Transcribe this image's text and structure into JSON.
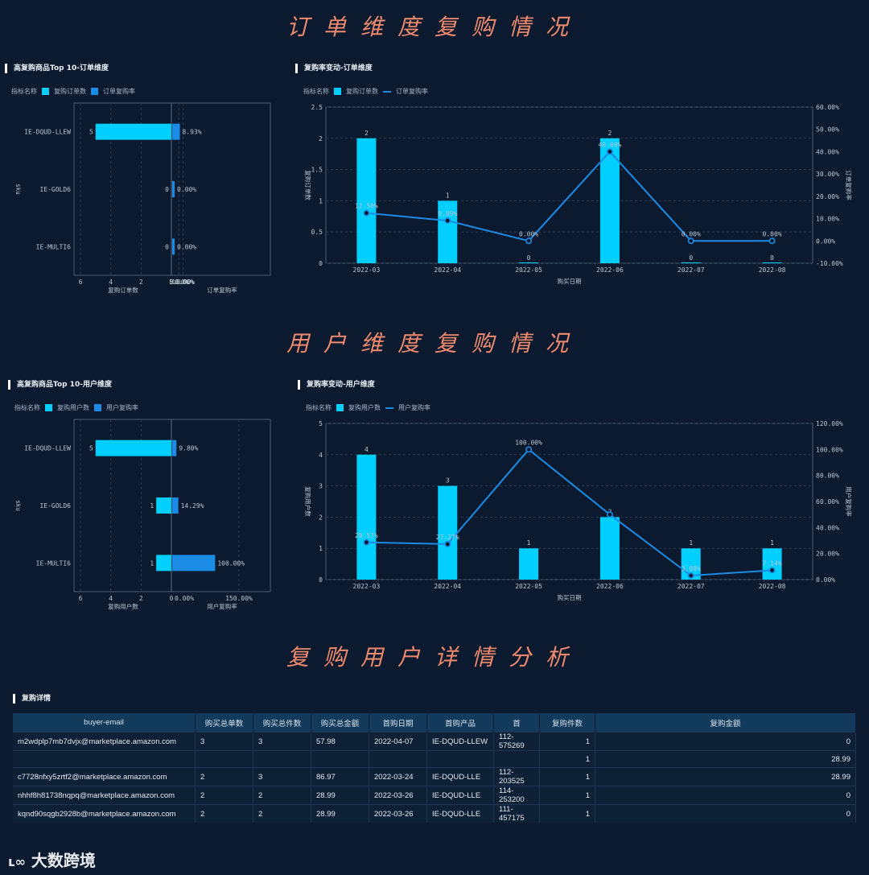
{
  "sections": {
    "order": "订单维度复购情况",
    "user": "用户维度复购情况",
    "detail": "复购用户详情分析"
  },
  "panels": {
    "top10_order": {
      "title": "高复购商品Top 10-订单维度",
      "legend_prefix": "指标名称",
      "legend": [
        "复购订单数",
        "订单复购率"
      ],
      "ylabel": "sku",
      "left_xlabel": "复购订单数",
      "right_xlabel": "订单复购率"
    },
    "trend_order": {
      "title": "复购率变动-订单维度",
      "legend_prefix": "指标名称",
      "legend": [
        "复购订单数",
        "订单复购率"
      ]
    },
    "top10_user": {
      "title": "高复购商品Top 10-用户维度",
      "legend_prefix": "指标名称",
      "legend": [
        "复购用户数",
        "用户复购率"
      ],
      "ylabel": "sku",
      "left_xlabel": "复购用户数",
      "right_xlabel": "用户复购率"
    },
    "trend_user": {
      "title": "复购率变动-用户维度",
      "legend_prefix": "指标名称",
      "legend": [
        "复购用户数",
        "用户复购率"
      ]
    },
    "detail": {
      "title": "复购详情"
    }
  },
  "chart_data": [
    {
      "id": "top10_order",
      "type": "bar",
      "orientation": "horizontal-butterfly",
      "categories": [
        "IE-DQUD-LLEW",
        "IE-GOLD6",
        "IE-MULTI6"
      ],
      "series": [
        {
          "name": "复购订单数",
          "values": [
            5,
            0,
            0
          ]
        },
        {
          "name": "订单复购率",
          "values": [
            8.93,
            0.0,
            0.0
          ],
          "labels": [
            "8.93%",
            "0.00%",
            "0.00%"
          ]
        }
      ],
      "left_axis": {
        "ticks": [
          "6",
          "4",
          "2",
          "0"
        ],
        "range": [
          0,
          6
        ]
      },
      "right_axis": {
        "ticks": [
          "0.00%",
          "5.00%",
          "10.00%"
        ],
        "range": [
          0,
          10
        ]
      },
      "ylabel": "sku",
      "xlabel_left": "复购订单数",
      "xlabel_right": "订单复购率",
      "colors": {
        "bar": "#00cfff",
        "rate": "#1c8be6"
      }
    },
    {
      "id": "trend_order",
      "type": "bar+line",
      "categories": [
        "2022-03",
        "2022-04",
        "2022-05",
        "2022-06",
        "2022-07",
        "2022-08"
      ],
      "series": [
        {
          "name": "复购订单数",
          "type": "bar",
          "values": [
            2,
            1,
            0,
            2,
            0,
            0
          ]
        },
        {
          "name": "订单复购率",
          "type": "line",
          "values": [
            12.5,
            9.09,
            0,
            40,
            0,
            0
          ],
          "labels": [
            "12.50%",
            "9.09%",
            "0.00%",
            "40.00%",
            "0.00%",
            "0.00%"
          ]
        }
      ],
      "xlabel": "购买日期",
      "ylabel": "复购订单数",
      "y2label": "订单复购率",
      "ylim": [
        0,
        2.5
      ],
      "yticks": [
        "0",
        "0.5",
        "1",
        "1.5",
        "2",
        "2.5"
      ],
      "y2lim": [
        -10,
        60
      ],
      "y2ticks": [
        "-10.00%",
        "0.00%",
        "10.00%",
        "20.00%",
        "30.00%",
        "40.00%",
        "50.00%",
        "60.00%"
      ],
      "colors": {
        "bar": "#00cfff",
        "line": "#1c8be6"
      }
    },
    {
      "id": "top10_user",
      "type": "bar",
      "orientation": "horizontal-butterfly",
      "categories": [
        "IE-DQUD-LLEW",
        "IE-GOLD6",
        "IE-MULTI6"
      ],
      "series": [
        {
          "name": "复购用户数",
          "values": [
            5,
            1,
            1
          ]
        },
        {
          "name": "用户复购率",
          "values": [
            9.8,
            14.29,
            100.0
          ],
          "labels": [
            "9.80%",
            "14.29%",
            "100.00%"
          ]
        }
      ],
      "left_axis": {
        "ticks": [
          "6",
          "4",
          "2",
          "0"
        ],
        "range": [
          0,
          6
        ]
      },
      "right_axis": {
        "ticks": [
          "0.00%",
          "150.00%"
        ],
        "range": [
          0,
          150
        ]
      },
      "ylabel": "sku",
      "xlabel_left": "复购用户数",
      "xlabel_right": "用户复购率",
      "colors": {
        "bar": "#00cfff",
        "rate": "#1c8be6"
      }
    },
    {
      "id": "trend_user",
      "type": "bar+line",
      "categories": [
        "2022-03",
        "2022-04",
        "2022-05",
        "2022-06",
        "2022-07",
        "2022-08"
      ],
      "series": [
        {
          "name": "复购用户数",
          "type": "bar",
          "values": [
            4,
            3,
            1,
            2,
            1,
            1
          ]
        },
        {
          "name": "用户复购率",
          "type": "line",
          "values": [
            28.57,
            27.27,
            100.0,
            50.0,
            3.08,
            7.14
          ],
          "labels": [
            "28.57%",
            "27.27%",
            "100.00%",
            "",
            "3.08%",
            "7.14%"
          ]
        }
      ],
      "xlabel": "购买日期",
      "ylabel": "复购用户数",
      "y2label": "用户复购率",
      "ylim": [
        0,
        5
      ],
      "yticks": [
        "0",
        "1",
        "2",
        "3",
        "4",
        "5"
      ],
      "y2lim": [
        0,
        120
      ],
      "y2ticks": [
        "0.00%",
        "20.00%",
        "40.00%",
        "60.00%",
        "80.00%",
        "100.00%",
        "120.00%"
      ],
      "colors": {
        "bar": "#00cfff",
        "line": "#1c8be6"
      }
    }
  ],
  "table": {
    "headers": [
      "buyer-email",
      "购买总单数",
      "购买总件数",
      "购买总金额",
      "首购日期",
      "首购产品",
      "首",
      "复购件数",
      "复购金额"
    ],
    "rows": [
      [
        "m2wdplp7mb7dvjx@marketplace.amazon.com",
        "3",
        "3",
        "57.98",
        "2022-04-07",
        "IE-DQUD-LLEW",
        "112-575269",
        "1",
        "0"
      ],
      [
        "",
        "",
        "",
        "",
        "",
        "",
        "",
        "1",
        "28.99"
      ],
      [
        "c7728nfxy5zrtf2@marketplace.amazon.com",
        "2",
        "3",
        "86.97",
        "2022-03-24",
        "IE-DQUD-LLE",
        "112-203525",
        "1",
        "28.99"
      ],
      [
        "nhhf8h81738nqpq@marketplace.amazon.com",
        "2",
        "2",
        "28.99",
        "2022-03-26",
        "IE-DQUD-LLE",
        "114-253200",
        "1",
        "0"
      ],
      [
        "kqnd90sqgb2928b@marketplace.amazon.com",
        "2",
        "2",
        "28.99",
        "2022-03-26",
        "IE-DQUD-LLE",
        "111-457175",
        "1",
        "0"
      ]
    ]
  },
  "watermark": "大数跨境"
}
